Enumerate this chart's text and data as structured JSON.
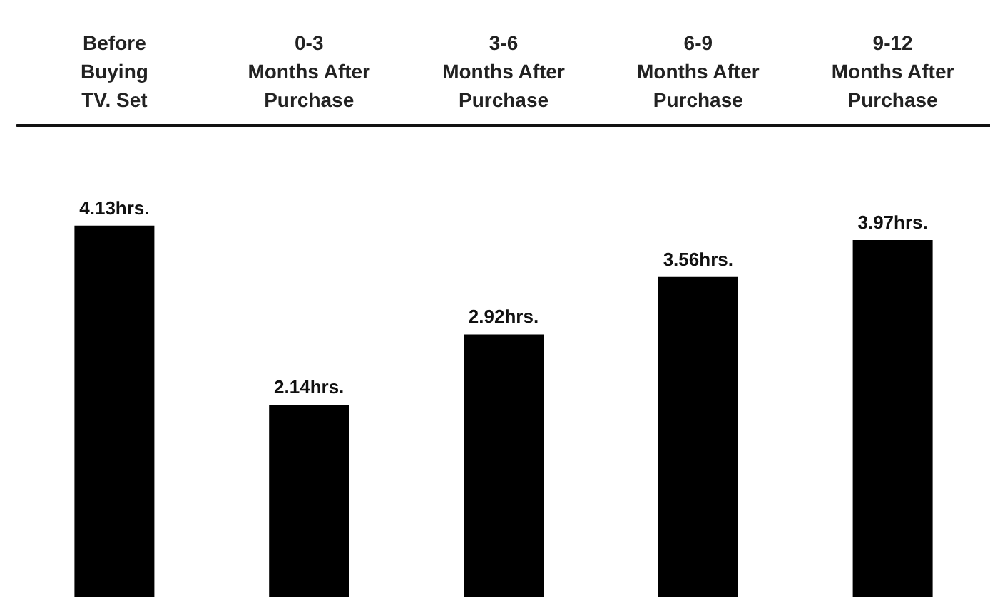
{
  "chart_data": {
    "type": "bar",
    "categories": [
      "Before\nBuying\nTV. Set",
      "0-3\nMonths After\nPurchase",
      "3-6\nMonths After\nPurchase",
      "6-9\nMonths After\nPurchase",
      "9-12\nMonths After\nPurchase"
    ],
    "values": [
      4.13,
      2.14,
      2.92,
      3.56,
      3.97
    ],
    "value_labels": [
      "4.13hrs.",
      "2.14hrs.",
      "2.92hrs.",
      "3.56hrs.",
      "3.97hrs."
    ],
    "color": "#000000",
    "tick_labels": "x"
  }
}
